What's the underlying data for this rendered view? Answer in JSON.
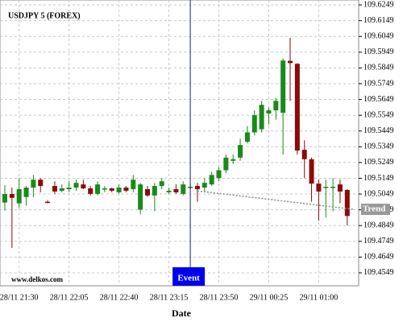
{
  "chart_data": {
    "type": "candlestick",
    "title": "USDJPY 5 (FOREX)",
    "x_label": "Date",
    "watermark": "www.delkos.com",
    "categories": [
      null,
      null,
      "28/11 21:30",
      null,
      null,
      null,
      null,
      null,
      null,
      "28/11 22:05",
      null,
      null,
      null,
      null,
      null,
      null,
      "28/11 22:40",
      null,
      null,
      null,
      null,
      null,
      null,
      "28/11 23:15",
      null,
      null,
      null,
      null,
      null,
      null,
      "28/11 23:50",
      null,
      null,
      null,
      null,
      null,
      null,
      "29/11 00:25",
      null,
      null,
      null,
      null,
      null,
      null,
      "29/11 01:00",
      null,
      null,
      null,
      null
    ],
    "open": [
      109.4995,
      109.5049,
      109.499,
      109.503,
      109.509,
      109.514,
      109.5,
      109.51,
      109.507,
      109.508,
      109.509,
      109.511,
      109.5085,
      109.505,
      109.508,
      109.5085,
      109.506,
      109.509,
      109.508,
      109.495,
      109.508,
      109.504,
      109.51,
      109.506,
      109.508,
      109.505,
      109.509,
      109.51,
      109.509,
      109.511,
      109.515,
      109.52,
      109.526,
      109.528,
      109.538,
      109.544,
      109.546,
      109.556,
      109.558,
      109.5564,
      109.5894,
      109.5875,
      109.533,
      109.527,
      109.5115,
      109.509,
      109.509,
      109.511,
      109.5075
    ],
    "high": [
      109.5105,
      109.509,
      109.515,
      109.51,
      109.517,
      109.515,
      109.501,
      109.513,
      109.511,
      109.513,
      109.514,
      109.514,
      109.51,
      109.513,
      109.51,
      109.509,
      109.511,
      109.51,
      109.517,
      109.512,
      109.51,
      109.512,
      109.515,
      109.509,
      109.511,
      109.513,
      109.511,
      109.512,
      109.515,
      109.519,
      109.522,
      109.53,
      109.53,
      109.54,
      109.548,
      109.558,
      109.564,
      109.56,
      109.566,
      109.591,
      109.604,
      109.588,
      109.539,
      109.528,
      109.514,
      109.514,
      109.515,
      109.514,
      109.508
    ],
    "low": [
      109.4944,
      109.4707,
      109.496,
      109.4975,
      109.503,
      109.506,
      109.499,
      109.505,
      109.506,
      109.506,
      109.507,
      109.508,
      109.504,
      109.504,
      109.506,
      109.506,
      109.505,
      109.506,
      109.506,
      109.492,
      109.503,
      109.494,
      109.508,
      109.505,
      109.505,
      109.504,
      109.508,
      109.5,
      109.506,
      109.51,
      109.513,
      109.518,
      109.524,
      109.526,
      109.537,
      109.542,
      109.544,
      109.549,
      109.552,
      109.53,
      109.564,
      109.53,
      109.515,
      109.5,
      109.488,
      109.49,
      109.494,
      109.499,
      109.485
    ],
    "close": [
      109.5049,
      109.5025,
      109.508,
      109.509,
      109.514,
      109.51,
      109.4995,
      109.5065,
      109.5085,
      109.509,
      109.512,
      109.5085,
      109.505,
      109.511,
      109.5085,
      109.507,
      109.509,
      109.507,
      109.514,
      109.511,
      109.504,
      109.51,
      109.513,
      109.507,
      109.506,
      109.511,
      109.5095,
      109.508,
      109.512,
      109.517,
      109.52,
      109.528,
      109.527,
      109.536,
      109.544,
      109.555,
      109.5615,
      109.558,
      109.564,
      109.5896,
      109.588,
      109.5325,
      109.527,
      109.5115,
      109.5065,
      109.5095,
      109.5095,
      109.5065,
      109.491
    ],
    "up_color": "#1a8a1a",
    "down_color": "#8b0a0a",
    "ylim": [
      109.4467,
      109.628
    ],
    "yticks": [
      109.4549,
      109.4649,
      109.4749,
      109.4849,
      109.4949,
      109.5049,
      109.5149,
      109.5249,
      109.5349,
      109.5449,
      109.5549,
      109.5649,
      109.5749,
      109.5849,
      109.5949,
      109.6049,
      109.6149,
      109.6249
    ],
    "grid": true,
    "event": {
      "label": "Event",
      "x": 26
    },
    "trend": {
      "label": "Trend",
      "x": [
        27,
        48
      ],
      "y": [
        109.5069,
        109.4952
      ]
    }
  }
}
